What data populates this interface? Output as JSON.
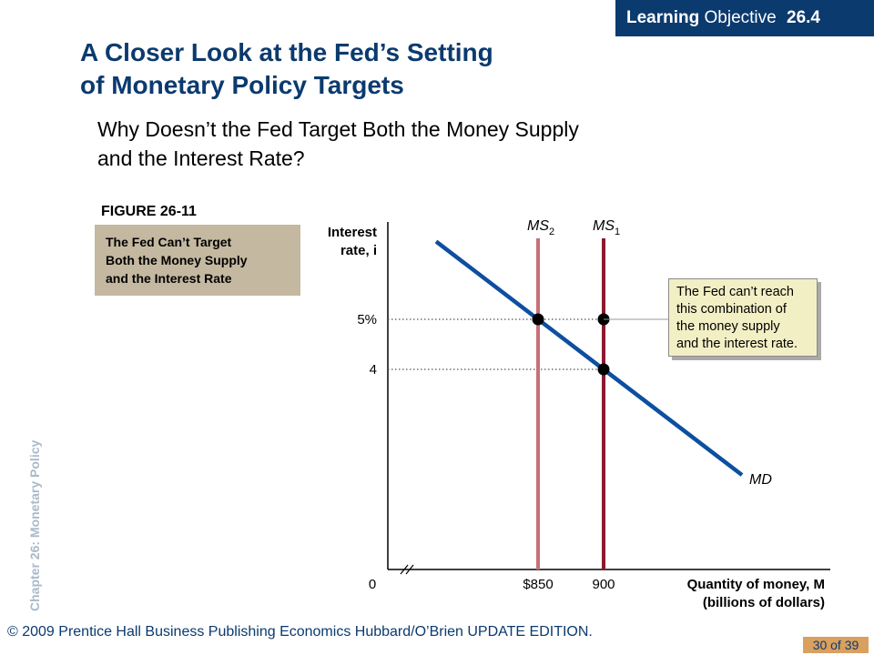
{
  "header": {
    "lo_word": "Learning",
    "lo_rest": "Objective",
    "lo_number": "26.4",
    "title_line1": "A Closer Look at the Fed’s Setting",
    "title_line2": "of Monetary Policy Targets",
    "subtitle_line1": "Why Doesn’t the Fed Target Both the Money Supply",
    "subtitle_line2": "and the Interest Rate?"
  },
  "figure": {
    "label": "FIGURE 26-11",
    "caption_line1": "The Fed Can’t Target",
    "caption_line2": "Both the Money Supply",
    "caption_line3": "and the Interest Rate"
  },
  "callout": {
    "line1": "The Fed can’t reach",
    "line2": "this combination of",
    "line3": "the money supply",
    "line4": "and the interest rate."
  },
  "chart_data": {
    "type": "line",
    "ylabel_line1": "Interest",
    "ylabel_line2": "rate, i",
    "xlabel_line1": "Quantity of money, M",
    "xlabel_line2": "(billions of dollars)",
    "origin_label": "0",
    "y_ticks": [
      {
        "value": 5,
        "label": "5%"
      },
      {
        "value": 4,
        "label": "4"
      }
    ],
    "x_ticks": [
      {
        "value": 850,
        "label": "$850"
      },
      {
        "value": 900,
        "label": "900"
      }
    ],
    "series": [
      {
        "name": "MD",
        "kind": "demand"
      },
      {
        "name": "MS2",
        "kind": "vertical",
        "x": 850,
        "color": "#c8707a"
      },
      {
        "name": "MS1",
        "kind": "vertical",
        "x": 900,
        "color": "#8b1a2e"
      }
    ],
    "points": [
      {
        "x": 850,
        "y": 5
      },
      {
        "x": 900,
        "y": 5
      },
      {
        "x": 900,
        "y": 4
      }
    ],
    "colors": {
      "md": "#0d4fa0",
      "ms2": "#c8707a",
      "ms1": "#8b1a2e"
    }
  },
  "footer": {
    "side_label": "Chapter 26: Monetary Policy",
    "copyright": "© 2009 Prentice Hall Business Publishing Economics Hubbard/O’Brien UPDATE EDITION.",
    "page": "30 of 39"
  }
}
